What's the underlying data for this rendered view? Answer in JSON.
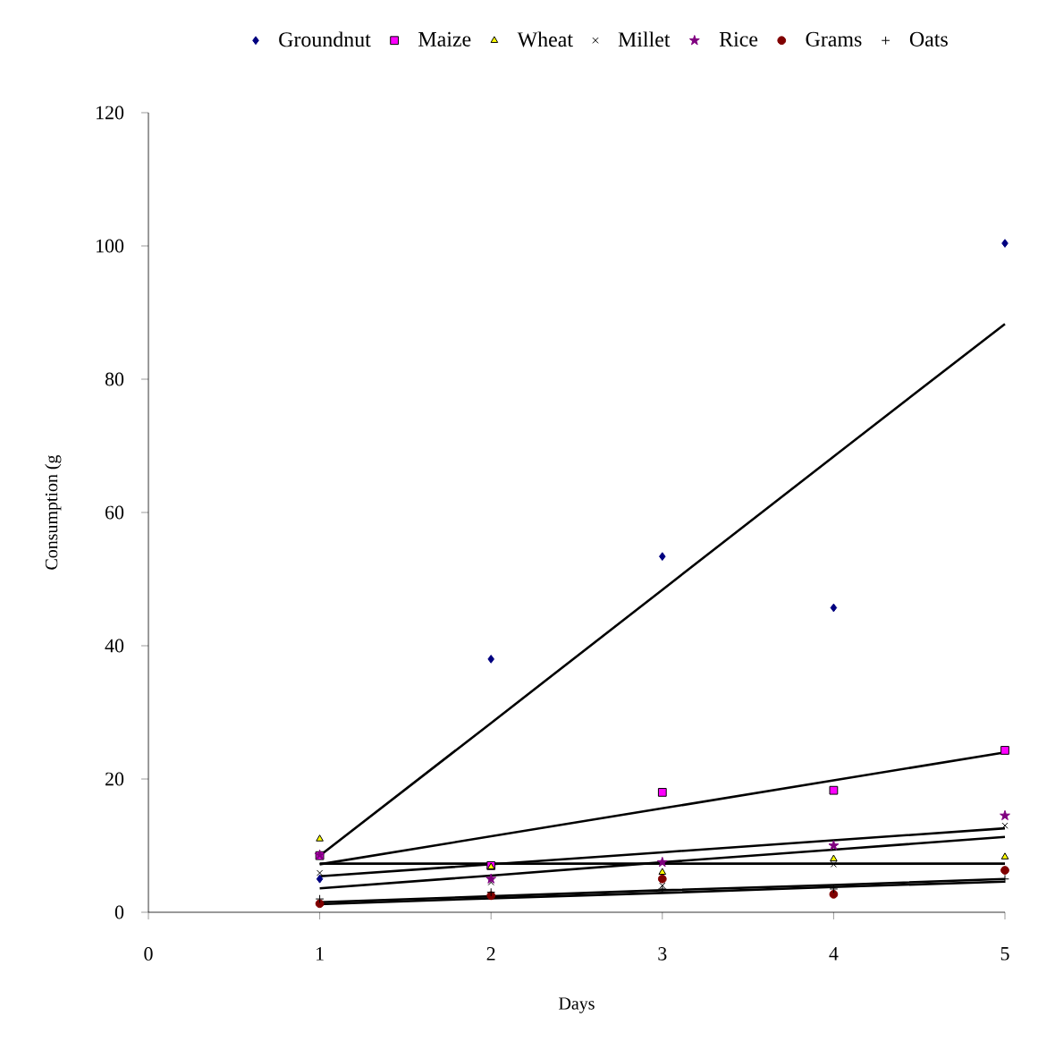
{
  "chart_data": {
    "type": "scatter",
    "xlabel": "Days",
    "ylabel": "Consumption (g",
    "xlim": [
      0,
      5
    ],
    "ylim": [
      0,
      120
    ],
    "xticks": [
      0,
      1,
      2,
      3,
      4,
      5
    ],
    "yticks": [
      0,
      20,
      40,
      60,
      80,
      100,
      120
    ],
    "legend": "top",
    "x": [
      1,
      2,
      3,
      4,
      5
    ],
    "series": [
      {
        "name": "Groundnut",
        "color": "#000080",
        "marker": "diamond",
        "values": [
          5,
          38,
          53.4,
          45.7,
          100.4
        ]
      },
      {
        "name": "Maize",
        "color": "#ff00ff",
        "marker": "square",
        "values": [
          8.5,
          7,
          18,
          18.3,
          24.3
        ]
      },
      {
        "name": "Wheat",
        "color": "#ffff00",
        "marker": "triangle",
        "values": [
          11,
          6.8,
          6,
          8,
          8.3
        ]
      },
      {
        "name": "Millet",
        "color": "#000000",
        "marker": "cross",
        "values": [
          5.9,
          4.5,
          4,
          7.2,
          13
        ]
      },
      {
        "name": "Rice",
        "color": "#800080",
        "marker": "star",
        "values": [
          8.6,
          5,
          7.5,
          10,
          14.5
        ]
      },
      {
        "name": "Grams",
        "color": "#800000",
        "marker": "circle",
        "values": [
          1.3,
          2.5,
          5,
          2.7,
          6.3
        ]
      },
      {
        "name": "Oats",
        "color": "#000000",
        "marker": "plus",
        "values": [
          2,
          3,
          3.5,
          3.5,
          5
        ]
      },
      {
        "type": "line",
        "color": "#000000",
        "marker": "none",
        "values": [
          8.5,
          28.4,
          48.4,
          68.4,
          88.3
        ]
      },
      {
        "type": "line",
        "color": "#000000",
        "marker": "none",
        "values": [
          7.2,
          11.4,
          15.6,
          19.8,
          24
        ]
      },
      {
        "type": "line",
        "color": "#000000",
        "marker": "none",
        "values": [
          7.3,
          7.3,
          7.3,
          7.3,
          7.3
        ]
      },
      {
        "type": "line",
        "color": "#000000",
        "marker": "none",
        "values": [
          3.6,
          5.5,
          7.5,
          9.4,
          11.3
        ]
      },
      {
        "type": "line",
        "color": "#000000",
        "marker": "none",
        "values": [
          5.4,
          7.2,
          9,
          10.8,
          12.6
        ]
      },
      {
        "type": "line",
        "color": "#000000",
        "marker": "none",
        "values": [
          1.5,
          2.4,
          3.3,
          4.1,
          5
        ]
      },
      {
        "type": "line",
        "color": "#000000",
        "marker": "none",
        "values": [
          1.2,
          2.1,
          2.9,
          3.8,
          4.6
        ]
      }
    ]
  }
}
